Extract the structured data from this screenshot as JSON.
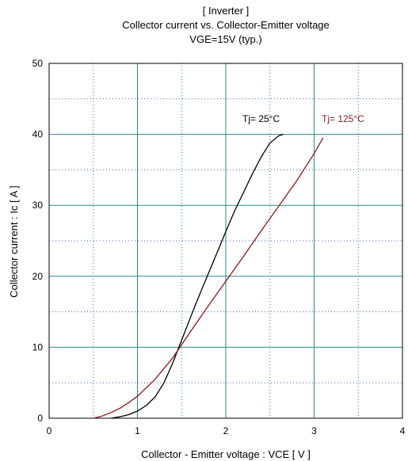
{
  "chart_data": {
    "type": "line",
    "title_lines": [
      "[ Inverter ]",
      "Collector current  vs.  Collector-Emitter voltage",
      "VGE=15V  (typ.)"
    ],
    "xlabel": "Collector - Emitter voltage  :  VCE  [ V ]",
    "ylabel": "Collector current  :  Ic  [ A ]",
    "xlim": [
      0,
      4
    ],
    "ylim": [
      0,
      50
    ],
    "xticks": [
      0,
      1,
      2,
      3,
      4
    ],
    "yticks": [
      0,
      10,
      20,
      30,
      40,
      50
    ],
    "grid": true,
    "series": [
      {
        "name": "Tj= 25°C",
        "color": "#000000",
        "x": [
          0.7,
          0.8,
          0.9,
          1.0,
          1.1,
          1.2,
          1.3,
          1.4,
          1.5,
          1.6,
          1.7,
          1.8,
          1.9,
          2.0,
          2.1,
          2.2,
          2.3,
          2.4,
          2.5,
          2.6,
          2.65
        ],
        "y": [
          0,
          0.2,
          0.5,
          1.0,
          1.8,
          3.0,
          5.0,
          7.8,
          11.0,
          14.2,
          17.3,
          20.3,
          23.3,
          26.3,
          29.2,
          31.8,
          34.4,
          36.8,
          38.8,
          39.8,
          40
        ]
      },
      {
        "name": "Tj= 125°C",
        "color": "#8b1a1a",
        "x": [
          0.5,
          0.6,
          0.7,
          0.8,
          0.9,
          1.0,
          1.2,
          1.4,
          1.6,
          1.8,
          2.0,
          2.2,
          2.4,
          2.6,
          2.8,
          3.0,
          3.1
        ],
        "y": [
          0,
          0.3,
          0.8,
          1.4,
          2.2,
          3.1,
          5.5,
          8.5,
          12.2,
          15.8,
          19.3,
          22.8,
          26.4,
          29.9,
          33.4,
          37.3,
          39.5
        ]
      }
    ],
    "annotations": [
      "Tj= 25°C",
      "Tj= 125°C"
    ]
  }
}
